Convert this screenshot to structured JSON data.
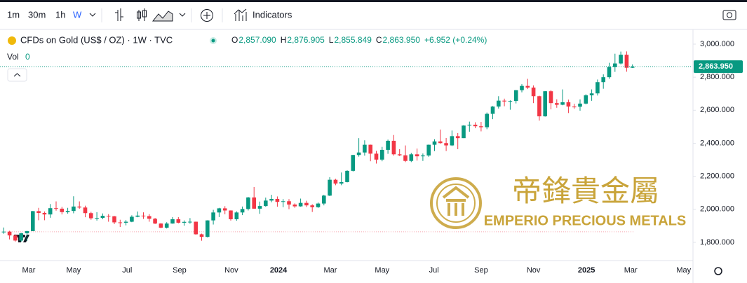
{
  "toolbar": {
    "intervals": [
      "1m",
      "30m",
      "1h",
      "W"
    ],
    "indicators": "Indicators"
  },
  "legend": {
    "symbol": "CFDs on Gold (US$ / OZ) · 1W · TVC",
    "fields": [
      {
        "key": "O",
        "value": "2,857.090"
      },
      {
        "key": "H",
        "value": "2,876.905"
      },
      {
        "key": "L",
        "value": "2,855.849"
      },
      {
        "key": "C",
        "value": "2,863.950"
      }
    ],
    "change": "+6.952 (+0.24%)",
    "vol_label": "Vol",
    "vol": "0"
  },
  "watermark": {
    "chinese": "帝鋒貴金屬",
    "english": "EMPERIO PRECIOUS METALS"
  },
  "chart_data": {
    "type": "candlestick",
    "up_color": "#089981",
    "down_color": "#f23645",
    "ylim": [
      1745,
      3080
    ],
    "yticks": [
      {
        "value": 3000,
        "label": "3,000.000"
      },
      {
        "value": 2800,
        "label": "2,800.000"
      },
      {
        "value": 2600,
        "label": "2,600.000"
      },
      {
        "value": 2400,
        "label": "2,400.000"
      },
      {
        "value": 2200,
        "label": "2,200.000"
      },
      {
        "value": 2000,
        "label": "2,000.000"
      },
      {
        "value": 1800,
        "label": "1,800.000"
      }
    ],
    "xticks": [
      {
        "value": 5.3,
        "label": "Mar"
      },
      {
        "value": 13.0,
        "label": "May"
      },
      {
        "value": 22.2,
        "label": "Jul"
      },
      {
        "value": 31.2,
        "label": "Sep"
      },
      {
        "value": 40.1,
        "label": "Nov"
      },
      {
        "value": 48.2,
        "label": "2024"
      },
      {
        "value": 57.1,
        "label": "Mar"
      },
      {
        "value": 66.0,
        "label": "May"
      },
      {
        "value": 74.9,
        "label": "Jul"
      },
      {
        "value": 83.0,
        "label": "Sep"
      },
      {
        "value": 92.0,
        "label": "Nov"
      },
      {
        "value": 101.1,
        "label": "2025"
      },
      {
        "value": 108.7,
        "label": "Mar"
      },
      {
        "value": 117.8,
        "label": "May"
      }
    ],
    "last_price": 2863.95,
    "last_price_label": "2,863.950",
    "baseline": 1864,
    "grid": false,
    "ohlc": [
      [
        1928,
        1960,
        1861,
        1865
      ],
      [
        1865,
        1890,
        1852,
        1865
      ],
      [
        1865,
        1870,
        1818,
        1842
      ],
      [
        1842,
        1848,
        1805,
        1811
      ],
      [
        1811,
        1858,
        1804,
        1855
      ],
      [
        1855,
        1870,
        1809,
        1868
      ],
      [
        1868,
        1990,
        1868,
        1989
      ],
      [
        1989,
        2009,
        1934,
        1978
      ],
      [
        1978,
        1987,
        1934,
        1969
      ],
      [
        1969,
        2032,
        1949,
        2007
      ],
      [
        2007,
        2048,
        1992,
        2004
      ],
      [
        2004,
        2015,
        1969,
        1983
      ],
      [
        1983,
        2009,
        1974,
        1990
      ],
      [
        1990,
        2079,
        1976,
        2017
      ],
      [
        2017,
        2048,
        2003,
        2011
      ],
      [
        2011,
        2022,
        1952,
        1977
      ],
      [
        1977,
        1985,
        1937,
        1946
      ],
      [
        1946,
        1983,
        1932,
        1948
      ],
      [
        1948,
        1975,
        1940,
        1961
      ],
      [
        1961,
        1971,
        1925,
        1958
      ],
      [
        1958,
        1960,
        1910,
        1921
      ],
      [
        1921,
        1937,
        1893,
        1919
      ],
      [
        1919,
        1935,
        1903,
        1925
      ],
      [
        1925,
        1964,
        1922,
        1955
      ],
      [
        1955,
        1987,
        1952,
        1962
      ],
      [
        1962,
        1982,
        1942,
        1959
      ],
      [
        1959,
        1971,
        1925,
        1943
      ],
      [
        1943,
        1948,
        1911,
        1914
      ],
      [
        1914,
        1917,
        1885,
        1889
      ],
      [
        1889,
        1922,
        1884,
        1914
      ],
      [
        1914,
        1953,
        1913,
        1940
      ],
      [
        1940,
        1953,
        1915,
        1919
      ],
      [
        1919,
        1933,
        1901,
        1924
      ],
      [
        1924,
        1947,
        1913,
        1925
      ],
      [
        1925,
        1926,
        1846,
        1849
      ],
      [
        1849,
        1853,
        1810,
        1833
      ],
      [
        1833,
        1934,
        1830,
        1933
      ],
      [
        1933,
        1997,
        1908,
        1981
      ],
      [
        1981,
        2009,
        1953,
        2006
      ],
      [
        2006,
        2019,
        1970,
        1993
      ],
      [
        1993,
        1994,
        1932,
        1940
      ],
      [
        1940,
        1988,
        1931,
        1981
      ],
      [
        1981,
        2017,
        1965,
        2002
      ],
      [
        2002,
        2075,
        1993,
        2072
      ],
      [
        2072,
        2135,
        2003,
        2004
      ],
      [
        2004,
        2047,
        1973,
        2020
      ],
      [
        2020,
        2071,
        2016,
        2053
      ],
      [
        2053,
        2088,
        2043,
        2063
      ],
      [
        2063,
        2078,
        2016,
        2045
      ],
      [
        2045,
        2062,
        2013,
        2049
      ],
      [
        2049,
        2062,
        2001,
        2029
      ],
      [
        2029,
        2036,
        2009,
        2018
      ],
      [
        2018,
        2065,
        2016,
        2039
      ],
      [
        2039,
        2052,
        2014,
        2024
      ],
      [
        2024,
        2031,
        1984,
        2013
      ],
      [
        2013,
        2041,
        2009,
        2035
      ],
      [
        2035,
        2088,
        2024,
        2083
      ],
      [
        2083,
        2195,
        2080,
        2179
      ],
      [
        2179,
        2185,
        2146,
        2156
      ],
      [
        2156,
        2223,
        2146,
        2165
      ],
      [
        2165,
        2236,
        2163,
        2233
      ],
      [
        2233,
        2330,
        2229,
        2329
      ],
      [
        2329,
        2431,
        2319,
        2344
      ],
      [
        2344,
        2418,
        2325,
        2391
      ],
      [
        2391,
        2392,
        2291,
        2337
      ],
      [
        2337,
        2354,
        2277,
        2301
      ],
      [
        2301,
        2378,
        2291,
        2360
      ],
      [
        2360,
        2422,
        2336,
        2415
      ],
      [
        2415,
        2450,
        2325,
        2333
      ],
      [
        2333,
        2364,
        2322,
        2327
      ],
      [
        2327,
        2387,
        2286,
        2293
      ],
      [
        2293,
        2342,
        2286,
        2333
      ],
      [
        2333,
        2368,
        2295,
        2321
      ],
      [
        2321,
        2338,
        2293,
        2326
      ],
      [
        2326,
        2392,
        2318,
        2391
      ],
      [
        2391,
        2424,
        2353,
        2411
      ],
      [
        2411,
        2483,
        2397,
        2401
      ],
      [
        2401,
        2432,
        2353,
        2387
      ],
      [
        2387,
        2477,
        2383,
        2443
      ],
      [
        2443,
        2462,
        2364,
        2431
      ],
      [
        2431,
        2509,
        2431,
        2507
      ],
      [
        2507,
        2531,
        2470,
        2512
      ],
      [
        2512,
        2527,
        2491,
        2503
      ],
      [
        2503,
        2529,
        2472,
        2497
      ],
      [
        2497,
        2586,
        2485,
        2578
      ],
      [
        2578,
        2625,
        2546,
        2622
      ],
      [
        2622,
        2685,
        2610,
        2658
      ],
      [
        2658,
        2670,
        2624,
        2653
      ],
      [
        2653,
        2660,
        2603,
        2656
      ],
      [
        2656,
        2722,
        2641,
        2721
      ],
      [
        2721,
        2758,
        2708,
        2747
      ],
      [
        2747,
        2790,
        2728,
        2737
      ],
      [
        2737,
        2750,
        2643,
        2685
      ],
      [
        2685,
        2688,
        2537,
        2563
      ],
      [
        2563,
        2716,
        2561,
        2715
      ],
      [
        2715,
        2721,
        2605,
        2643
      ],
      [
        2643,
        2666,
        2615,
        2633
      ],
      [
        2633,
        2726,
        2630,
        2648
      ],
      [
        2648,
        2664,
        2583,
        2622
      ],
      [
        2622,
        2639,
        2609,
        2621
      ],
      [
        2621,
        2665,
        2597,
        2640
      ],
      [
        2640,
        2697,
        2635,
        2690
      ],
      [
        2690,
        2726,
        2657,
        2702
      ],
      [
        2702,
        2786,
        2689,
        2770
      ],
      [
        2770,
        2817,
        2730,
        2800
      ],
      [
        2800,
        2887,
        2790,
        2861
      ],
      [
        2861,
        2942,
        2832,
        2883
      ],
      [
        2883,
        2955,
        2877,
        2936
      ],
      [
        2936,
        2956,
        2833,
        2857
      ],
      [
        2857.09,
        2876.905,
        2855.849,
        2863.95
      ]
    ]
  }
}
